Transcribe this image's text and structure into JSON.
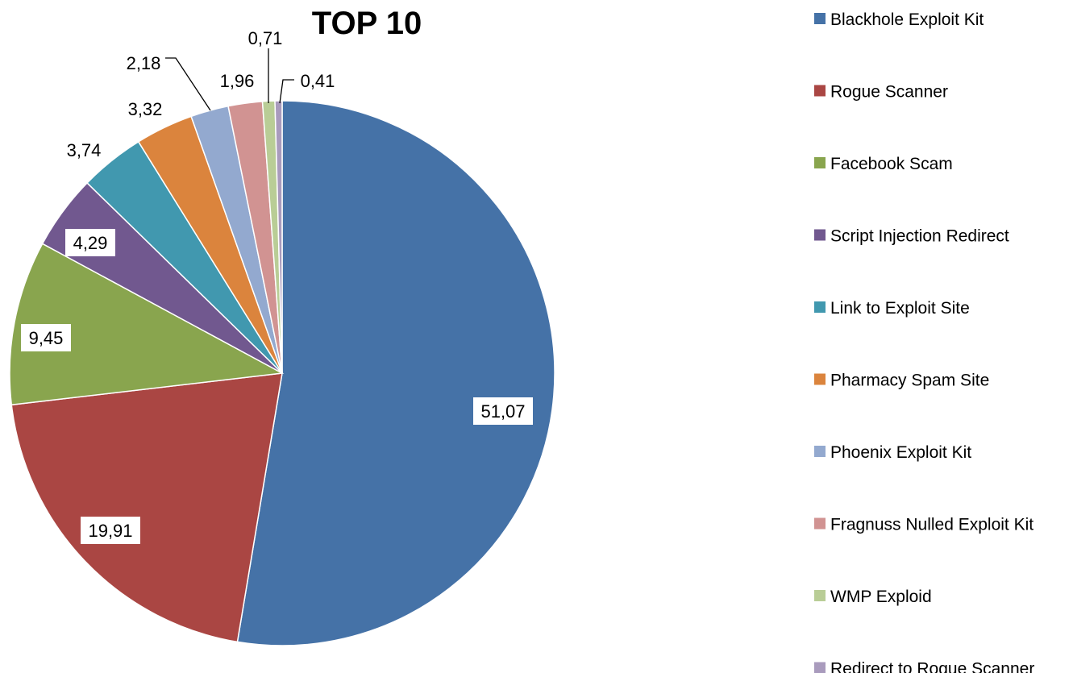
{
  "chart_data": {
    "type": "pie",
    "title": "TOP 10",
    "legend_position": "right",
    "categories": [
      "Blackhole Exploit Kit",
      "Rogue Scanner",
      "Facebook Scam",
      "Script Injection Redirect",
      "Link to Exploit Site",
      "Pharmacy Spam Site",
      "Phoenix Exploit Kit",
      "Fragnuss Nulled Exploit Kit",
      "WMP Exploid",
      "Redirect to Rogue Scanner"
    ],
    "values": [
      51.07,
      19.91,
      9.45,
      4.29,
      3.74,
      3.32,
      2.18,
      1.96,
      0.71,
      0.41
    ],
    "value_labels": [
      "51,07",
      "19,91",
      "9,45",
      "4,29",
      "3,74",
      "3,32",
      "2,18",
      "1,96",
      "0,71",
      "0,41"
    ],
    "colors": [
      "#4572A7",
      "#AA4643",
      "#89A54E",
      "#71588F",
      "#4198AF",
      "#DB843D",
      "#93A9CF",
      "#D19392",
      "#B9CD96",
      "#A99BBD"
    ]
  }
}
